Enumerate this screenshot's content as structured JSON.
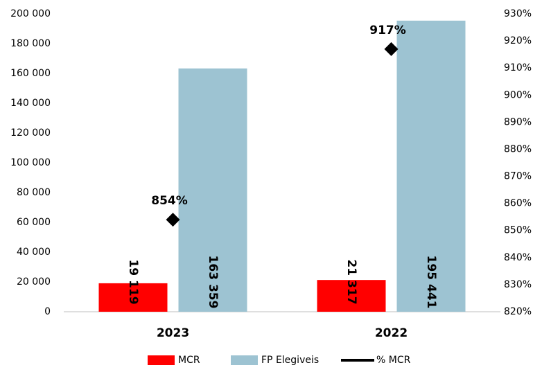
{
  "chart_data": {
    "type": "bar",
    "categories": [
      "2023",
      "2022"
    ],
    "series": [
      {
        "name": "MCR",
        "color": "#ff0000",
        "values": [
          19119,
          21317
        ],
        "value_labels": [
          "19 119",
          "21 317"
        ]
      },
      {
        "name": "FP Elegiveis",
        "color": "#9dc3d2",
        "values": [
          163359,
          195441
        ],
        "value_labels": [
          "163 359",
          "195 441"
        ]
      },
      {
        "name": "% MCR",
        "color": "#000000",
        "type": "line",
        "axis": "y2",
        "values": [
          854,
          917
        ],
        "value_labels": [
          "854%",
          "917%"
        ]
      }
    ],
    "ylim": [
      0,
      200000
    ],
    "yticks": [
      0,
      {
        "value": 20000,
        "label": "20 000"
      },
      {
        "value": 40000,
        "label": "40 000"
      },
      {
        "value": 60000,
        "label": "60 000"
      },
      {
        "value": 80000,
        "label": "80 000"
      },
      {
        "value": 100000,
        "label": "100 000"
      },
      {
        "value": 120000,
        "label": "120 000"
      },
      {
        "value": 140000,
        "label": "140 000"
      },
      {
        "value": 160000,
        "label": "160 000"
      },
      {
        "value": 180000,
        "label": "180 000"
      },
      {
        "value": 200000,
        "label": "200 000"
      }
    ],
    "y2lim": [
      820,
      930
    ],
    "y2ticks": [
      {
        "value": 820,
        "label": "820%"
      },
      {
        "value": 830,
        "label": "830%"
      },
      {
        "value": 840,
        "label": "840%"
      },
      {
        "value": 850,
        "label": "850%"
      },
      {
        "value": 860,
        "label": "860%"
      },
      {
        "value": 870,
        "label": "870%"
      },
      {
        "value": 880,
        "label": "880%"
      },
      {
        "value": 890,
        "label": "890%"
      },
      {
        "value": 900,
        "label": "900%"
      },
      {
        "value": 910,
        "label": "910%"
      },
      {
        "value": 920,
        "label": "920%"
      },
      {
        "value": 930,
        "label": "930%"
      }
    ],
    "legend": "bottom"
  }
}
